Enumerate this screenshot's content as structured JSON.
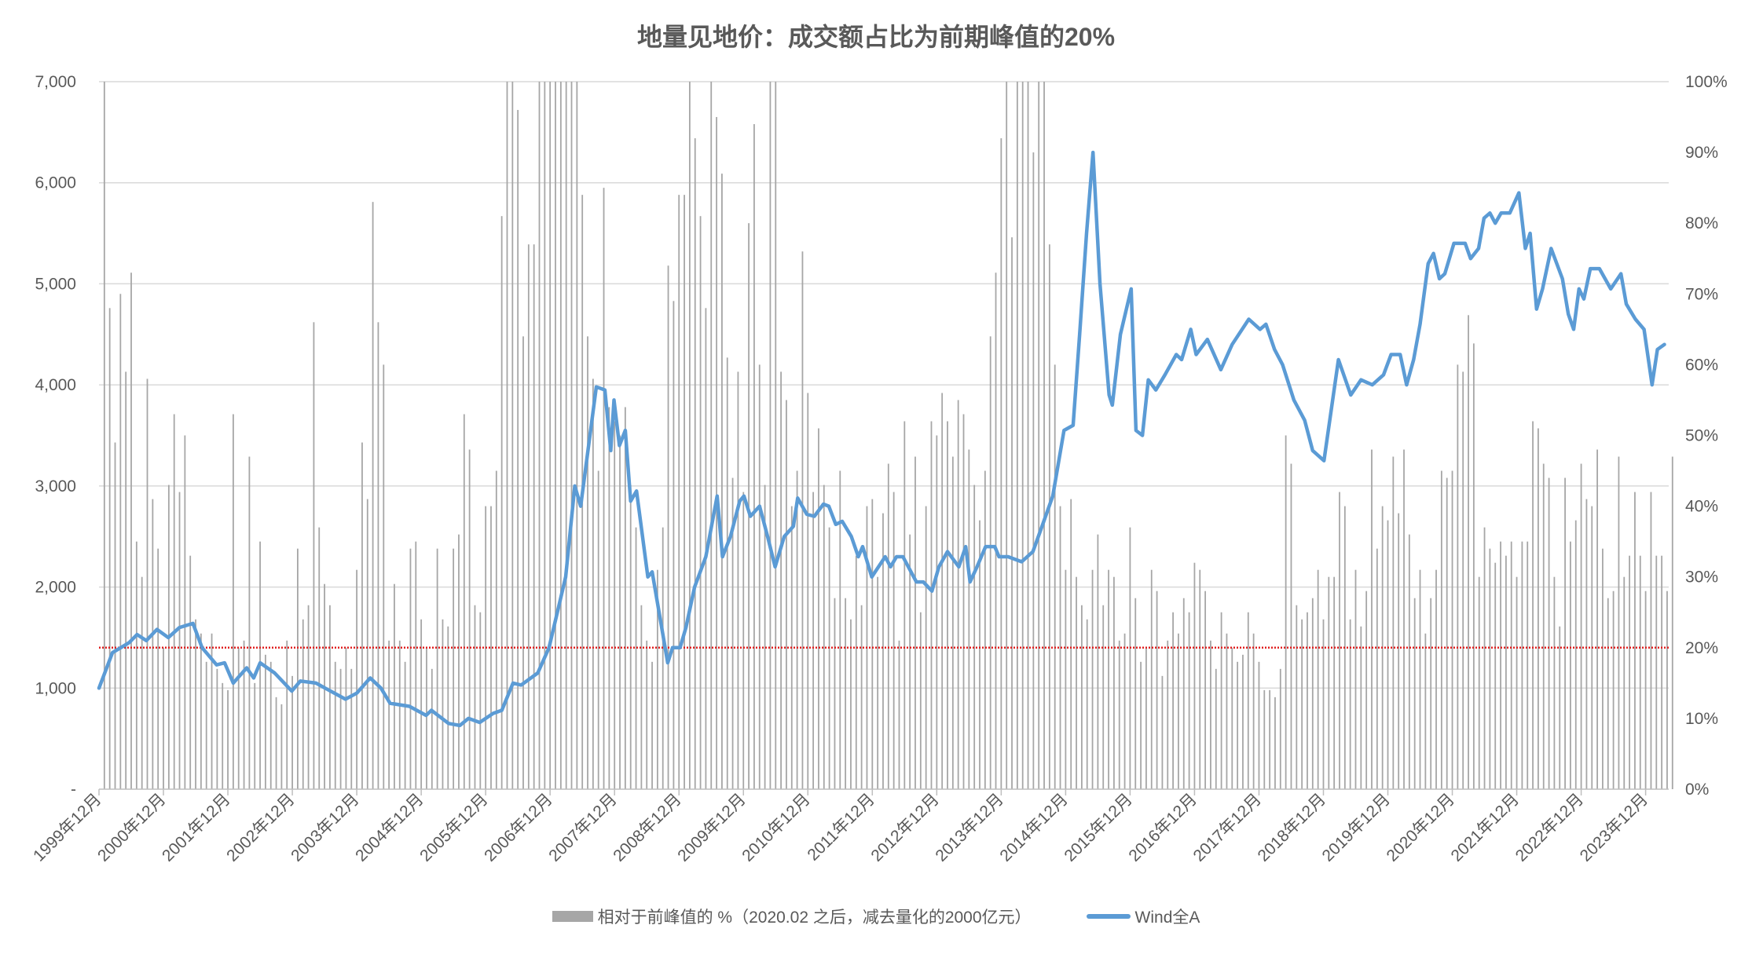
{
  "chart_data": {
    "type": "bar+line",
    "title": "地量见地价：成交额占比为前期峰值的20%",
    "x_start": "1999-12",
    "x_unit": "month index (0 = 1999年12月)",
    "xlim": [
      0,
      294
    ],
    "x_tick_labels": [
      "1999年12月",
      "2000年12月",
      "2001年12月",
      "2002年12月",
      "2003年12月",
      "2004年12月",
      "2005年12月",
      "2006年12月",
      "2007年12月",
      "2008年12月",
      "2009年12月",
      "2010年12月",
      "2011年12月",
      "2012年12月",
      "2013年12月",
      "2014年12月",
      "2015年12月",
      "2016年12月",
      "2017年12月",
      "2018年12月",
      "2019年12月",
      "2020年12月",
      "2021年12月",
      "2022年12月",
      "2023年12月"
    ],
    "y_left": {
      "ylim": [
        0,
        7000
      ],
      "tick_labels": [
        "-",
        "1,000",
        "2,000",
        "3,000",
        "4,000",
        "5,000",
        "6,000",
        "7,000"
      ]
    },
    "y_right": {
      "ylim": [
        0,
        100
      ],
      "tick_labels": [
        "0%",
        "10%",
        "20%",
        "30%",
        "40%",
        "50%",
        "60%",
        "70%",
        "80%",
        "90%",
        "100%"
      ]
    },
    "grid": true,
    "legend_placement": "bottom",
    "reference_line": {
      "axis": "right",
      "value": 20,
      "color": "#e02020",
      "style": "dotted"
    },
    "series": [
      {
        "name": "相对于前峰值的 %（2020.02 之后，减去量化的2000亿元）",
        "type": "bar",
        "axis": "right",
        "color": "#a6a6a6",
        "values": [
          0,
          100,
          68,
          49,
          70,
          59,
          73,
          35,
          30,
          58,
          41,
          34,
          20,
          43,
          53,
          42,
          50,
          33,
          24,
          22,
          18,
          22,
          17,
          15,
          14,
          53,
          20,
          21,
          47,
          15,
          35,
          19,
          18,
          13,
          12,
          21,
          16,
          34,
          24,
          26,
          66,
          37,
          29,
          26,
          18,
          17,
          20,
          17,
          31,
          49,
          41,
          83,
          66,
          60,
          21,
          29,
          21,
          18,
          34,
          35,
          24,
          20,
          17,
          34,
          24,
          23,
          34,
          36,
          53,
          48,
          26,
          25,
          40,
          40,
          45,
          81,
          100,
          100,
          96,
          64,
          77,
          77,
          100,
          100,
          100,
          100,
          100,
          100,
          100,
          100,
          84,
          64,
          58,
          45,
          85,
          54,
          52,
          50,
          54,
          43,
          37,
          26,
          21,
          18,
          31,
          37,
          74,
          69,
          84,
          84,
          100,
          92,
          81,
          68,
          100,
          95,
          87,
          61,
          44,
          59,
          42,
          80,
          94,
          60,
          43,
          100,
          100,
          59,
          55,
          40,
          45,
          76,
          56,
          42,
          51,
          43,
          37,
          27,
          45,
          27,
          24,
          33,
          26,
          40,
          41,
          30,
          39,
          46,
          42,
          21,
          52,
          36,
          47,
          25,
          40,
          52,
          50,
          56,
          52,
          47,
          55,
          53,
          48,
          43,
          38,
          45,
          64,
          73,
          92,
          100,
          78,
          100,
          100,
          100,
          90,
          100,
          100,
          77,
          60,
          40,
          31,
          41,
          30,
          26,
          24,
          31,
          36,
          26,
          31,
          30,
          21,
          22,
          37,
          27,
          18,
          20,
          31,
          28,
          16,
          21,
          25,
          22,
          27,
          25,
          32,
          31,
          28,
          21,
          17,
          25,
          22,
          20,
          18,
          19,
          25,
          22,
          18,
          14,
          14,
          13,
          17,
          50,
          46,
          26,
          24,
          25,
          27,
          31,
          24,
          30,
          30,
          42,
          40,
          24,
          31,
          23,
          28,
          48,
          34,
          40,
          38,
          47,
          39,
          48,
          36,
          27,
          31,
          22,
          27,
          31,
          45,
          44,
          45,
          60,
          59,
          67,
          63,
          30,
          37,
          34,
          32,
          35,
          33,
          35,
          30,
          35,
          35,
          52,
          51,
          46,
          44,
          30,
          23,
          44,
          35,
          38,
          46,
          41,
          40,
          48,
          34,
          27,
          28,
          47,
          30,
          33,
          42,
          33,
          28,
          42,
          33,
          33,
          28,
          47
        ]
      },
      {
        "name": "Wind全A",
        "type": "line",
        "axis": "left",
        "color": "#5b9bd5",
        "points": [
          [
            0,
            1000
          ],
          [
            2.5,
            1350
          ],
          [
            5.6,
            1450
          ],
          [
            7.1,
            1530
          ],
          [
            8.8,
            1470
          ],
          [
            10.8,
            1580
          ],
          [
            12.9,
            1500
          ],
          [
            15,
            1600
          ],
          [
            17.5,
            1640
          ],
          [
            19.2,
            1400
          ],
          [
            21.9,
            1230
          ],
          [
            23.4,
            1250
          ],
          [
            25,
            1050
          ],
          [
            27.5,
            1200
          ],
          [
            28.8,
            1100
          ],
          [
            30,
            1250
          ],
          [
            32.7,
            1150
          ],
          [
            35.9,
            970
          ],
          [
            37.5,
            1070
          ],
          [
            40.4,
            1050
          ],
          [
            42.1,
            1000
          ],
          [
            45.9,
            890
          ],
          [
            48,
            950
          ],
          [
            50.5,
            1100
          ],
          [
            52.5,
            1000
          ],
          [
            54.2,
            850
          ],
          [
            57.8,
            820
          ],
          [
            60.9,
            730
          ],
          [
            61.9,
            780
          ],
          [
            65.1,
            650
          ],
          [
            67.2,
            630
          ],
          [
            68.8,
            700
          ],
          [
            70.9,
            660
          ],
          [
            73.4,
            750
          ],
          [
            75,
            780
          ],
          [
            77.1,
            1050
          ],
          [
            78.6,
            1030
          ],
          [
            81.7,
            1150
          ],
          [
            83.8,
            1400
          ],
          [
            86.9,
            2100
          ],
          [
            88.6,
            3000
          ],
          [
            89.7,
            2800
          ],
          [
            92.6,
            3980
          ],
          [
            94.2,
            3950
          ],
          [
            95.3,
            3350
          ],
          [
            95.9,
            3850
          ],
          [
            96.9,
            3400
          ],
          [
            98,
            3550
          ],
          [
            99,
            2850
          ],
          [
            100.1,
            2950
          ],
          [
            102.2,
            2100
          ],
          [
            103,
            2150
          ],
          [
            104.3,
            1750
          ],
          [
            105.9,
            1250
          ],
          [
            106.8,
            1400
          ],
          [
            108.2,
            1400
          ],
          [
            109.3,
            1600
          ],
          [
            110.9,
            2000
          ],
          [
            113,
            2300
          ],
          [
            115.1,
            2900
          ],
          [
            116.1,
            2300
          ],
          [
            117.6,
            2500
          ],
          [
            119.3,
            2850
          ],
          [
            120.1,
            2900
          ],
          [
            121.3,
            2700
          ],
          [
            123,
            2800
          ],
          [
            124.5,
            2500
          ],
          [
            125.9,
            2200
          ],
          [
            127.6,
            2500
          ],
          [
            129.3,
            2600
          ],
          [
            130.1,
            2880
          ],
          [
            131.8,
            2720
          ],
          [
            133.2,
            2700
          ],
          [
            134.9,
            2820
          ],
          [
            135.9,
            2800
          ],
          [
            137.2,
            2620
          ],
          [
            138.4,
            2650
          ],
          [
            140.1,
            2500
          ],
          [
            141.4,
            2300
          ],
          [
            142.2,
            2400
          ],
          [
            143.9,
            2100
          ],
          [
            146.4,
            2300
          ],
          [
            147.4,
            2200
          ],
          [
            148.5,
            2300
          ],
          [
            149.7,
            2300
          ],
          [
            152.2,
            2050
          ],
          [
            153.5,
            2050
          ],
          [
            155.1,
            1960
          ],
          [
            156.4,
            2200
          ],
          [
            158,
            2350
          ],
          [
            160.1,
            2200
          ],
          [
            161.4,
            2400
          ],
          [
            162.2,
            2050
          ],
          [
            163.5,
            2200
          ],
          [
            165.1,
            2400
          ],
          [
            166.8,
            2400
          ],
          [
            167.6,
            2300
          ],
          [
            169.3,
            2300
          ],
          [
            171.8,
            2250
          ],
          [
            173.9,
            2350
          ],
          [
            175.6,
            2600
          ],
          [
            177.6,
            2900
          ],
          [
            179.7,
            3550
          ],
          [
            181.4,
            3600
          ],
          [
            182.6,
            4500
          ],
          [
            183.9,
            5500
          ],
          [
            185.1,
            6300
          ],
          [
            186.4,
            5000
          ],
          [
            188.1,
            3900
          ],
          [
            188.7,
            3800
          ],
          [
            190.2,
            4500
          ],
          [
            192.2,
            4950
          ],
          [
            193.1,
            3550
          ],
          [
            194.3,
            3500
          ],
          [
            195.4,
            4050
          ],
          [
            196.8,
            3950
          ],
          [
            198.5,
            4100
          ],
          [
            200.6,
            4300
          ],
          [
            201.6,
            4250
          ],
          [
            203.3,
            4550
          ],
          [
            204.3,
            4300
          ],
          [
            206.4,
            4450
          ],
          [
            208.9,
            4150
          ],
          [
            211,
            4400
          ],
          [
            214.1,
            4650
          ],
          [
            216.2,
            4550
          ],
          [
            217.3,
            4600
          ],
          [
            218.9,
            4350
          ],
          [
            220.4,
            4200
          ],
          [
            222.5,
            3850
          ],
          [
            224.5,
            3650
          ],
          [
            226,
            3350
          ],
          [
            228.1,
            3250
          ],
          [
            230.8,
            4250
          ],
          [
            233.1,
            3900
          ],
          [
            235,
            4050
          ],
          [
            237.1,
            4000
          ],
          [
            239.2,
            4100
          ],
          [
            240.6,
            4300
          ],
          [
            242.3,
            4300
          ],
          [
            243.5,
            4000
          ],
          [
            244.8,
            4250
          ],
          [
            246,
            4600
          ],
          [
            247.5,
            5200
          ],
          [
            248.5,
            5300
          ],
          [
            249.6,
            5050
          ],
          [
            250.6,
            5100
          ],
          [
            252.3,
            5400
          ],
          [
            254.4,
            5400
          ],
          [
            255.4,
            5250
          ],
          [
            256.9,
            5350
          ],
          [
            257.9,
            5650
          ],
          [
            259,
            5700
          ],
          [
            260,
            5600
          ],
          [
            261.1,
            5700
          ],
          [
            262.7,
            5700
          ],
          [
            264.4,
            5900
          ],
          [
            265.6,
            5350
          ],
          [
            266.5,
            5500
          ],
          [
            267.7,
            4750
          ],
          [
            268.8,
            4950
          ],
          [
            270.4,
            5350
          ],
          [
            272.5,
            5050
          ],
          [
            273.6,
            4700
          ],
          [
            274.6,
            4550
          ],
          [
            275.6,
            4950
          ],
          [
            276.5,
            4850
          ],
          [
            277.7,
            5150
          ],
          [
            279.4,
            5150
          ],
          [
            281.5,
            4950
          ],
          [
            283.4,
            5100
          ],
          [
            284.4,
            4800
          ],
          [
            286.1,
            4650
          ],
          [
            287.7,
            4550
          ],
          [
            289.2,
            4000
          ],
          [
            290.2,
            4350
          ],
          [
            291.5,
            4400
          ]
        ]
      }
    ]
  }
}
